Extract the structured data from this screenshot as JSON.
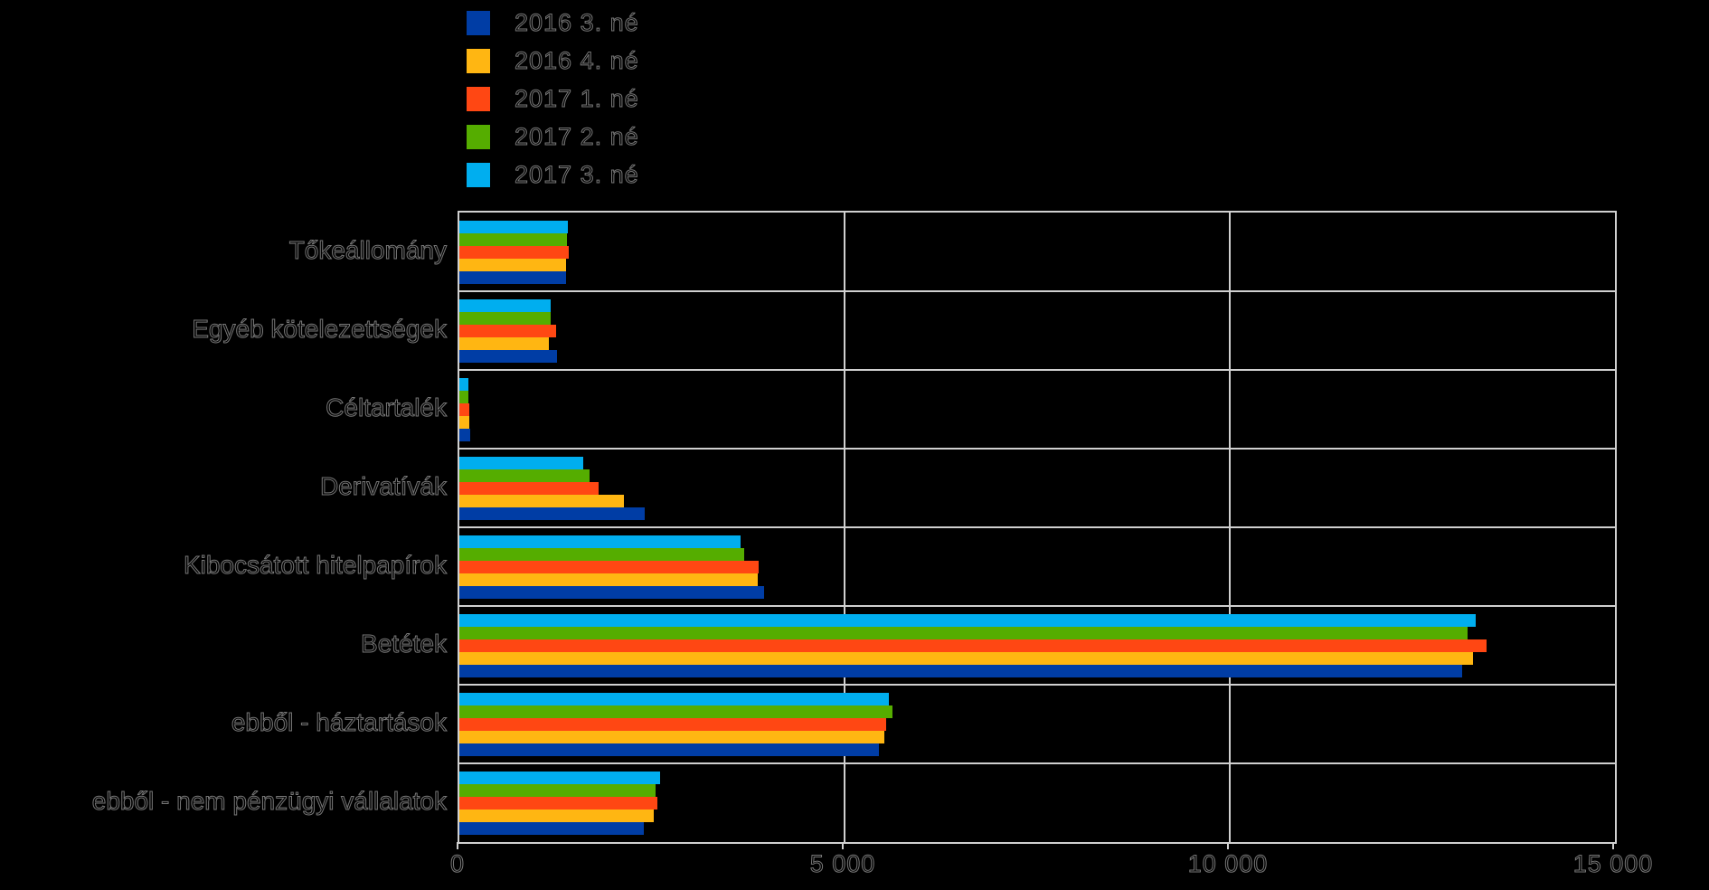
{
  "colors": {
    "background": "#000000",
    "grid": "#d0d0d0",
    "text": "#000000",
    "text_edge": "#5f5f5f"
  },
  "chart_data": {
    "type": "bar",
    "orientation": "horizontal",
    "title": "",
    "xlabel": "",
    "ylabel": "",
    "xlim": [
      0,
      15000
    ],
    "grid": true,
    "legend_position": "top-left",
    "bar_group_order": "last-series-on-top",
    "x_ticks": [
      {
        "value": 0,
        "label": "0"
      },
      {
        "value": 5000,
        "label": "5 000"
      },
      {
        "value": 10000,
        "label": "10 000"
      },
      {
        "value": 15000,
        "label": "15 000"
      }
    ],
    "categories": [
      "Tőkeállomány",
      "Egyéb kötelezettségek",
      "Céltartalék",
      "Derivatívák",
      "Kibocsátott hitelpapírok",
      "Betétek",
      "ebből - háztartások",
      "ebből - nem pénzügyi vállalatok"
    ],
    "series": [
      {
        "name": "2016 3. né",
        "color": "#003da5",
        "values": [
          1385,
          1270,
          140,
          2405,
          3955,
          13020,
          5450,
          2400
        ]
      },
      {
        "name": "2016 4. né",
        "color": "#ffb612",
        "values": [
          1385,
          1160,
          130,
          2135,
          3875,
          13160,
          5520,
          2520
        ]
      },
      {
        "name": "2017 1. né",
        "color": "#ff4713",
        "values": [
          1420,
          1255,
          125,
          1810,
          3885,
          13330,
          5540,
          2570
        ]
      },
      {
        "name": "2017 2. né",
        "color": "#55ad00",
        "values": [
          1400,
          1185,
          120,
          1690,
          3700,
          13090,
          5620,
          2550
        ]
      },
      {
        "name": "2017 3. né",
        "color": "#00aeef",
        "values": [
          1410,
          1185,
          115,
          1610,
          3650,
          13190,
          5570,
          2600
        ]
      }
    ]
  }
}
